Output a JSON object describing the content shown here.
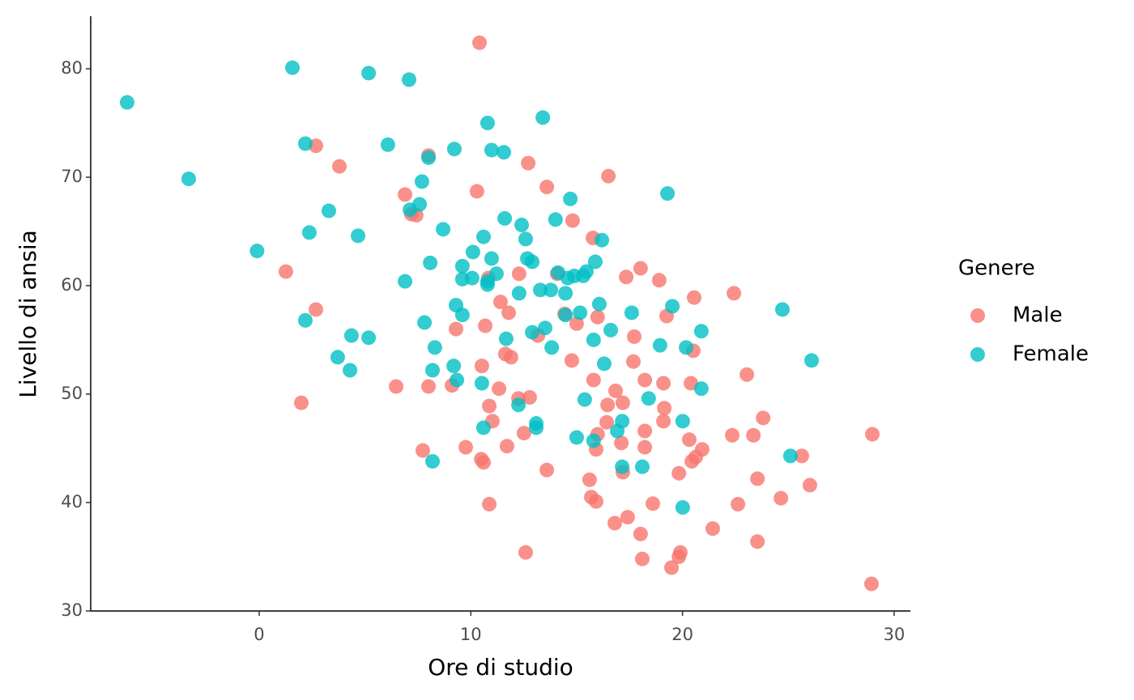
{
  "chart_data": {
    "type": "scatter",
    "x_label": "Ore di studio",
    "y_label": "Livello di ansia",
    "legend_title": "Genere",
    "xlim": [
      -7.96,
      30.77
    ],
    "ylim": [
      30,
      84.85
    ],
    "xticks": [
      0,
      10,
      20,
      30
    ],
    "yticks": [
      30,
      40,
      50,
      60,
      70,
      80
    ],
    "legend_position": "right",
    "series": [
      {
        "name": "Male",
        "color": "#F8766D",
        "x": [
          10.41,
          2.68,
          3.79,
          1.26,
          2.68,
          1.99,
          6.47,
          6.89,
          7.19,
          7.42,
          8.0,
          7.73,
          8.0,
          9.11,
          9.3,
          9.76,
          10.29,
          10.52,
          10.49,
          10.6,
          10.68,
          10.87,
          11.02,
          10.87,
          10.83,
          11.4,
          11.33,
          11.63,
          11.79,
          11.9,
          11.71,
          12.71,
          12.28,
          12.25,
          12.78,
          12.51,
          12.59,
          13.17,
          13.59,
          13.59,
          14.08,
          14.43,
          14.81,
          14.77,
          15.0,
          15.61,
          15.69,
          15.92,
          15.77,
          15.8,
          15.99,
          15.99,
          15.92,
          16.5,
          16.46,
          16.42,
          16.84,
          16.8,
          17.11,
          17.18,
          17.18,
          17.34,
          17.41,
          17.68,
          17.72,
          18.02,
          18.22,
          18.22,
          18.22,
          18.02,
          18.1,
          18.6,
          18.9,
          19.1,
          19.14,
          19.1,
          19.25,
          19.48,
          19.83,
          19.9,
          19.83,
          20.32,
          20.44,
          20.51,
          20.55,
          20.4,
          20.63,
          20.93,
          21.43,
          22.35,
          22.43,
          22.62,
          23.04,
          23.35,
          23.54,
          23.54,
          23.81,
          24.65,
          25.64,
          26.02,
          28.97,
          28.93
        ],
        "values": [
          82.4,
          72.9,
          71.0,
          61.3,
          57.8,
          49.2,
          50.7,
          68.4,
          66.6,
          66.5,
          72.0,
          44.8,
          50.7,
          50.8,
          56.0,
          45.1,
          68.7,
          52.6,
          44.0,
          43.7,
          56.3,
          48.9,
          47.5,
          39.85,
          60.7,
          58.5,
          50.5,
          53.7,
          57.5,
          53.4,
          45.2,
          71.3,
          61.1,
          49.6,
          49.7,
          46.4,
          35.4,
          55.4,
          69.1,
          43.0,
          61.1,
          57.4,
          66.0,
          53.1,
          56.5,
          42.1,
          40.5,
          40.1,
          64.4,
          51.3,
          57.1,
          46.3,
          44.9,
          70.1,
          49.0,
          47.4,
          50.3,
          38.1,
          45.5,
          49.2,
          42.8,
          60.8,
          38.65,
          53.0,
          55.3,
          61.6,
          51.3,
          46.6,
          45.1,
          37.1,
          34.8,
          39.9,
          60.5,
          51.0,
          48.7,
          47.5,
          57.2,
          34.0,
          42.7,
          35.4,
          35.0,
          45.8,
          43.8,
          54.0,
          58.9,
          51.0,
          44.2,
          44.9,
          37.6,
          46.2,
          59.3,
          39.85,
          51.8,
          46.2,
          42.2,
          36.4,
          47.8,
          40.4,
          44.3,
          41.6,
          46.3,
          32.5
        ]
      },
      {
        "name": "Female",
        "color": "#00BFC4",
        "x": [
          -6.24,
          -3.33,
          -0.1,
          1.57,
          2.18,
          2.37,
          2.18,
          3.29,
          3.71,
          4.36,
          4.29,
          4.67,
          5.17,
          5.17,
          6.08,
          7.08,
          6.89,
          7.12,
          7.58,
          7.69,
          8.0,
          7.81,
          8.08,
          8.3,
          8.19,
          8.19,
          8.69,
          9.22,
          9.3,
          9.19,
          9.34,
          9.6,
          9.6,
          9.6,
          10.1,
          10.06,
          10.6,
          10.79,
          10.79,
          10.79,
          10.98,
          10.98,
          11.21,
          10.52,
          10.6,
          11.56,
          11.6,
          11.67,
          12.4,
          12.59,
          12.67,
          12.9,
          12.28,
          12.25,
          12.9,
          13.09,
          13.09,
          13.4,
          13.28,
          13.51,
          13.82,
          13.78,
          14.0,
          14.12,
          14.47,
          14.47,
          14.7,
          14.58,
          14.89,
          15.16,
          15.0,
          15.31,
          15.38,
          15.46,
          15.88,
          15.8,
          15.8,
          16.07,
          16.19,
          16.3,
          16.61,
          16.92,
          17.15,
          17.15,
          17.6,
          18.1,
          18.4,
          18.94,
          19.29,
          19.52,
          20.17,
          20.01,
          20.01,
          20.89,
          20.89,
          24.72,
          25.1,
          26.1
        ],
        "values": [
          76.9,
          69.85,
          63.2,
          80.1,
          73.1,
          64.9,
          56.8,
          66.9,
          53.4,
          55.4,
          52.2,
          64.6,
          79.6,
          55.2,
          73.0,
          79.0,
          60.4,
          67.0,
          67.5,
          69.6,
          71.8,
          56.6,
          62.1,
          54.3,
          52.2,
          43.8,
          65.2,
          72.6,
          58.2,
          52.6,
          51.3,
          61.8,
          60.6,
          57.3,
          63.1,
          60.7,
          64.5,
          75.0,
          60.4,
          60.1,
          62.5,
          72.5,
          61.1,
          51.0,
          46.9,
          72.3,
          66.2,
          55.1,
          65.6,
          64.3,
          62.5,
          62.2,
          59.3,
          49.0,
          55.7,
          47.3,
          46.9,
          75.5,
          59.6,
          56.1,
          54.3,
          59.6,
          66.1,
          61.2,
          59.3,
          57.3,
          68.0,
          60.7,
          60.9,
          57.5,
          46.0,
          60.9,
          49.5,
          61.3,
          62.2,
          55.0,
          45.7,
          58.3,
          64.2,
          52.8,
          55.9,
          46.6,
          47.5,
          43.3,
          57.5,
          43.3,
          49.6,
          54.5,
          68.5,
          58.1,
          54.3,
          47.5,
          39.55,
          55.8,
          50.5,
          57.8,
          44.3,
          53.1
        ]
      }
    ]
  }
}
